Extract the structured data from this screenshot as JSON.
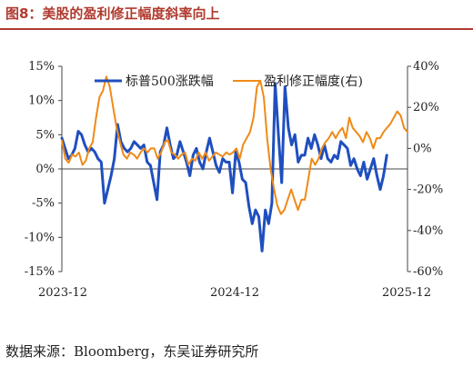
{
  "figure": {
    "title": "图8：美股的盈利修正幅度斜率向上",
    "source": "数据来源：Bloomberg，东吴证券研究所"
  },
  "chart_data": {
    "type": "line",
    "title": "",
    "xlabel": "",
    "ylabel": "",
    "x_tick_labels": [
      "2023-12",
      "2024-12",
      "2025-12"
    ],
    "x_range": [
      "2023-12",
      "2025-12"
    ],
    "y_left": {
      "min": -15,
      "max": 15,
      "ticks": [
        "15%",
        "10%",
        "5%",
        "0%",
        "-5%",
        "-10%",
        "-15%"
      ]
    },
    "y_right": {
      "min": -60,
      "max": 40,
      "ticks": [
        "40%",
        "20%",
        "0%",
        "-20%",
        "-40%",
        "-60%"
      ]
    },
    "grid": false,
    "legend_position": "top",
    "series": [
      {
        "name": "标普500涨跌幅",
        "axis": "left",
        "color": "#1f4fbf",
        "values": [
          4.5,
          3.0,
          1.5,
          2.0,
          3.0,
          5.5,
          5.0,
          3.5,
          2.5,
          3.0,
          2.5,
          1.5,
          1.0,
          -5.0,
          -3.0,
          -1.0,
          1.5,
          6.5,
          4.0,
          3.0,
          2.5,
          3.0,
          4.0,
          3.5,
          3.0,
          3.5,
          1.0,
          0.5,
          -2.0,
          -4.5,
          2.5,
          3.5,
          6.0,
          3.5,
          1.5,
          2.0,
          4.0,
          2.5,
          1.0,
          -1.0,
          2.0,
          3.0,
          1.0,
          0.0,
          2.5,
          4.5,
          2.5,
          0.5,
          -0.5,
          1.5,
          1.0,
          1.0,
          -3.5,
          2.5,
          1.0,
          -1.5,
          -2.0,
          -5.5,
          -8.0,
          -6.0,
          -7.0,
          -12.0,
          -6.0,
          -8.0,
          -5.0,
          12.5,
          5.0,
          -2.0,
          12.0,
          6.0,
          3.5,
          5.0,
          1.0,
          2.0,
          2.0,
          4.5,
          3.0,
          5.0,
          3.5,
          1.5,
          3.5,
          1.5,
          1.0,
          2.0,
          1.5,
          4.0,
          3.5,
          3.0,
          0.5,
          1.5,
          0.0,
          -1.0,
          1.0,
          -1.5,
          0.0,
          1.5,
          -1.0,
          -3.0,
          -1.0,
          2.0
        ],
        "x_start": 0.0,
        "x_end": 0.94
      },
      {
        "name": "盈利修正幅度(右)",
        "axis": "right",
        "color": "#ef8a17",
        "values": [
          4,
          -5,
          -7,
          -3,
          -4,
          -2,
          -8,
          -6,
          0,
          3,
          15,
          25,
          28,
          35,
          30,
          20,
          10,
          3,
          -3,
          -5,
          -2,
          -3,
          -5,
          -2,
          0,
          -2,
          0,
          0,
          -5,
          -2,
          3,
          4,
          -2,
          -3,
          -5,
          -3,
          -2,
          -8,
          -5,
          -6,
          -2,
          -5,
          -2,
          -6,
          -4,
          -2,
          -3,
          -4,
          -2,
          -3,
          -2,
          0,
          -5,
          2,
          5,
          8,
          15,
          30,
          33,
          25,
          5,
          -10,
          -20,
          -28,
          -32,
          -30,
          -25,
          -20,
          -25,
          -30,
          -25,
          -25,
          -15,
          -5,
          -8,
          -5,
          0,
          3,
          5,
          8,
          5,
          8,
          10,
          5,
          15,
          10,
          8,
          6,
          3,
          8,
          5,
          0,
          5,
          5,
          8,
          10,
          12,
          15,
          18,
          16,
          10,
          8
        ],
        "x_start": 0.0,
        "x_end": 1.0
      }
    ]
  }
}
